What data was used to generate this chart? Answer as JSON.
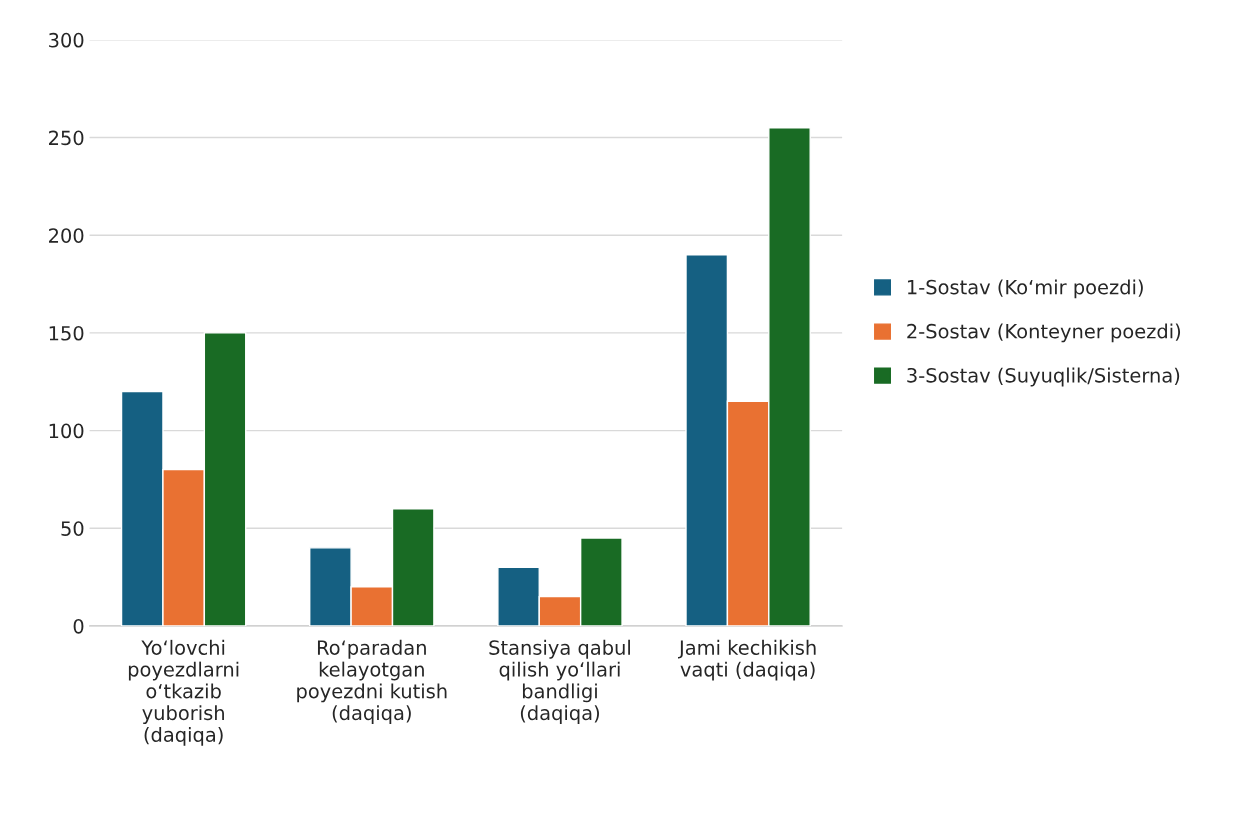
{
  "chart_data": {
    "type": "bar",
    "categories": [
      "Yo‘lovchi\npoyezdlarni\no‘tkazib\nyuborish\n(daqiqa)",
      "Ro‘paradan\nkelayotgan\npoyezdni kutish\n(daqiqa)",
      "Stansiya qabul\nqilish yo‘llari\nbandligi\n(daqiqa)",
      "Jami kechikish\nvaqti (daqiqa)"
    ],
    "series": [
      {
        "name": "1-Sostav (Ko‘mir poezdi)",
        "color": "#156082",
        "values": [
          120,
          40,
          30,
          190
        ]
      },
      {
        "name": "2-Sostav (Konteyner poezdi)",
        "color": "#e97132",
        "values": [
          80,
          20,
          15,
          115
        ]
      },
      {
        "name": "3-Sostav (Suyuqlik/Sisterna)",
        "color": "#196b24",
        "values": [
          150,
          60,
          45,
          255
        ]
      }
    ],
    "ylim": [
      0,
      300
    ],
    "yticks": [
      0,
      50,
      100,
      150,
      200,
      250,
      300
    ],
    "grid": "y",
    "legend": "right"
  }
}
